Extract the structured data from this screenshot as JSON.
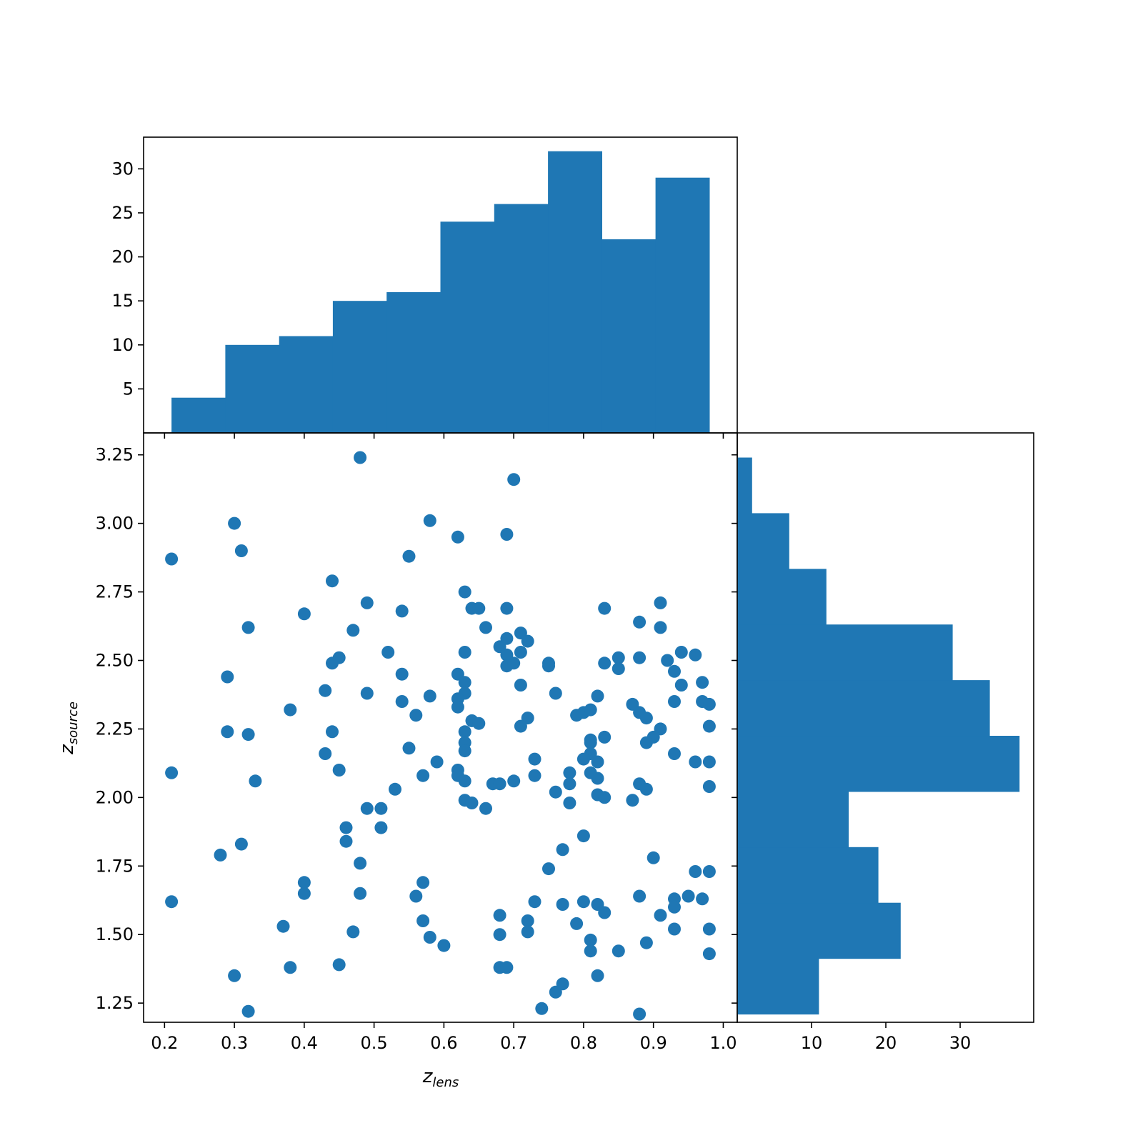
{
  "colors": {
    "series": "#1f77b4",
    "axis": "#000000",
    "background": "#ffffff"
  },
  "chart_data": [
    {
      "id": "scatter",
      "type": "scatter",
      "xlabel": "z",
      "xlabel_sub": "lens",
      "ylabel": "z",
      "ylabel_sub": "source",
      "xlim": [
        0.17,
        1.02
      ],
      "ylim": [
        1.18,
        3.33
      ],
      "xticks": [
        {
          "value": 0.2,
          "label": "0.2"
        },
        {
          "value": 0.3,
          "label": "0.3"
        },
        {
          "value": 0.4,
          "label": "0.4"
        },
        {
          "value": 0.5,
          "label": "0.5"
        },
        {
          "value": 0.6,
          "label": "0.6"
        },
        {
          "value": 0.7,
          "label": "0.7"
        },
        {
          "value": 0.8,
          "label": "0.8"
        },
        {
          "value": 0.9,
          "label": "0.9"
        },
        {
          "value": 1.0,
          "label": "1.0"
        }
      ],
      "yticks": [
        {
          "value": 1.25,
          "label": "1.25"
        },
        {
          "value": 1.5,
          "label": "1.50"
        },
        {
          "value": 1.75,
          "label": "1.75"
        },
        {
          "value": 2.0,
          "label": "2.00"
        },
        {
          "value": 2.25,
          "label": "2.25"
        },
        {
          "value": 2.5,
          "label": "2.50"
        },
        {
          "value": 2.75,
          "label": "2.75"
        },
        {
          "value": 3.0,
          "label": "3.00"
        },
        {
          "value": 3.25,
          "label": "3.25"
        }
      ],
      "grid": false,
      "points": [
        [
          0.48,
          3.24
        ],
        [
          0.7,
          3.16
        ],
        [
          0.3,
          3.0
        ],
        [
          0.58,
          3.01
        ],
        [
          0.62,
          2.95
        ],
        [
          0.69,
          2.96
        ],
        [
          0.31,
          2.9
        ],
        [
          0.21,
          2.87
        ],
        [
          0.55,
          2.88
        ],
        [
          0.44,
          2.79
        ],
        [
          0.63,
          2.75
        ],
        [
          0.4,
          2.67
        ],
        [
          0.49,
          2.71
        ],
        [
          0.54,
          2.68
        ],
        [
          0.64,
          2.69
        ],
        [
          0.65,
          2.69
        ],
        [
          0.69,
          2.69
        ],
        [
          0.83,
          2.69
        ],
        [
          0.91,
          2.71
        ],
        [
          0.32,
          2.62
        ],
        [
          0.47,
          2.61
        ],
        [
          0.66,
          2.62
        ],
        [
          0.88,
          2.64
        ],
        [
          0.91,
          2.62
        ],
        [
          0.71,
          2.6
        ],
        [
          0.69,
          2.58
        ],
        [
          0.72,
          2.57
        ],
        [
          0.68,
          2.55
        ],
        [
          0.52,
          2.53
        ],
        [
          0.63,
          2.53
        ],
        [
          0.71,
          2.53
        ],
        [
          0.69,
          2.52
        ],
        [
          0.45,
          2.51
        ],
        [
          0.44,
          2.49
        ],
        [
          0.69,
          2.48
        ],
        [
          0.7,
          2.49
        ],
        [
          0.75,
          2.49
        ],
        [
          0.75,
          2.48
        ],
        [
          0.83,
          2.49
        ],
        [
          0.85,
          2.51
        ],
        [
          0.85,
          2.47
        ],
        [
          0.88,
          2.51
        ],
        [
          0.92,
          2.5
        ],
        [
          0.94,
          2.53
        ],
        [
          0.96,
          2.52
        ],
        [
          0.29,
          2.44
        ],
        [
          0.54,
          2.45
        ],
        [
          0.62,
          2.45
        ],
        [
          0.63,
          2.42
        ],
        [
          0.71,
          2.41
        ],
        [
          0.93,
          2.46
        ],
        [
          0.94,
          2.41
        ],
        [
          0.97,
          2.42
        ],
        [
          0.43,
          2.39
        ],
        [
          0.49,
          2.38
        ],
        [
          0.58,
          2.37
        ],
        [
          0.63,
          2.38
        ],
        [
          0.76,
          2.38
        ],
        [
          0.82,
          2.37
        ],
        [
          0.54,
          2.35
        ],
        [
          0.62,
          2.36
        ],
        [
          0.62,
          2.33
        ],
        [
          0.87,
          2.34
        ],
        [
          0.93,
          2.35
        ],
        [
          0.97,
          2.35
        ],
        [
          0.98,
          2.34
        ],
        [
          0.38,
          2.32
        ],
        [
          0.56,
          2.3
        ],
        [
          0.79,
          2.3
        ],
        [
          0.8,
          2.31
        ],
        [
          0.81,
          2.32
        ],
        [
          0.88,
          2.31
        ],
        [
          0.89,
          2.29
        ],
        [
          0.72,
          2.29
        ],
        [
          0.64,
          2.28
        ],
        [
          0.65,
          2.27
        ],
        [
          0.71,
          2.26
        ],
        [
          0.29,
          2.24
        ],
        [
          0.32,
          2.23
        ],
        [
          0.44,
          2.24
        ],
        [
          0.63,
          2.24
        ],
        [
          0.91,
          2.25
        ],
        [
          0.98,
          2.26
        ],
        [
          0.83,
          2.22
        ],
        [
          0.9,
          2.22
        ],
        [
          0.89,
          2.2
        ],
        [
          0.81,
          2.21
        ],
        [
          0.81,
          2.2
        ],
        [
          0.63,
          2.2
        ],
        [
          0.55,
          2.18
        ],
        [
          0.63,
          2.17
        ],
        [
          0.43,
          2.16
        ],
        [
          0.93,
          2.16
        ],
        [
          0.81,
          2.16
        ],
        [
          0.59,
          2.13
        ],
        [
          0.73,
          2.14
        ],
        [
          0.8,
          2.14
        ],
        [
          0.82,
          2.13
        ],
        [
          0.96,
          2.13
        ],
        [
          0.98,
          2.13
        ],
        [
          0.45,
          2.1
        ],
        [
          0.62,
          2.1
        ],
        [
          0.21,
          2.09
        ],
        [
          0.57,
          2.08
        ],
        [
          0.62,
          2.08
        ],
        [
          0.73,
          2.08
        ],
        [
          0.78,
          2.09
        ],
        [
          0.81,
          2.09
        ],
        [
          0.33,
          2.06
        ],
        [
          0.63,
          2.06
        ],
        [
          0.67,
          2.05
        ],
        [
          0.68,
          2.05
        ],
        [
          0.7,
          2.06
        ],
        [
          0.78,
          2.05
        ],
        [
          0.82,
          2.07
        ],
        [
          0.88,
          2.05
        ],
        [
          0.98,
          2.04
        ],
        [
          0.53,
          2.03
        ],
        [
          0.76,
          2.02
        ],
        [
          0.89,
          2.03
        ],
        [
          0.82,
          2.01
        ],
        [
          0.83,
          2.0
        ],
        [
          0.87,
          1.99
        ],
        [
          0.63,
          1.99
        ],
        [
          0.64,
          1.98
        ],
        [
          0.78,
          1.98
        ],
        [
          0.49,
          1.96
        ],
        [
          0.51,
          1.96
        ],
        [
          0.66,
          1.96
        ],
        [
          0.46,
          1.89
        ],
        [
          0.51,
          1.89
        ],
        [
          0.8,
          1.86
        ],
        [
          0.46,
          1.84
        ],
        [
          0.31,
          1.83
        ],
        [
          0.77,
          1.81
        ],
        [
          0.28,
          1.79
        ],
        [
          0.9,
          1.78
        ],
        [
          0.48,
          1.76
        ],
        [
          0.75,
          1.74
        ],
        [
          0.96,
          1.73
        ],
        [
          0.98,
          1.73
        ],
        [
          0.4,
          1.69
        ],
        [
          0.57,
          1.69
        ],
        [
          0.4,
          1.65
        ],
        [
          0.48,
          1.65
        ],
        [
          0.56,
          1.64
        ],
        [
          0.88,
          1.64
        ],
        [
          0.95,
          1.64
        ],
        [
          0.93,
          1.63
        ],
        [
          0.97,
          1.63
        ],
        [
          0.21,
          1.62
        ],
        [
          0.73,
          1.62
        ],
        [
          0.8,
          1.62
        ],
        [
          0.77,
          1.61
        ],
        [
          0.82,
          1.61
        ],
        [
          0.93,
          1.6
        ],
        [
          0.83,
          1.58
        ],
        [
          0.68,
          1.57
        ],
        [
          0.91,
          1.57
        ],
        [
          0.57,
          1.55
        ],
        [
          0.72,
          1.55
        ],
        [
          0.79,
          1.54
        ],
        [
          0.37,
          1.53
        ],
        [
          0.93,
          1.52
        ],
        [
          0.98,
          1.52
        ],
        [
          0.47,
          1.51
        ],
        [
          0.72,
          1.51
        ],
        [
          0.68,
          1.5
        ],
        [
          0.58,
          1.49
        ],
        [
          0.81,
          1.48
        ],
        [
          0.89,
          1.47
        ],
        [
          0.6,
          1.46
        ],
        [
          0.81,
          1.44
        ],
        [
          0.85,
          1.44
        ],
        [
          0.98,
          1.43
        ],
        [
          0.45,
          1.39
        ],
        [
          0.38,
          1.38
        ],
        [
          0.68,
          1.38
        ],
        [
          0.69,
          1.38
        ],
        [
          0.3,
          1.35
        ],
        [
          0.82,
          1.35
        ],
        [
          0.77,
          1.32
        ],
        [
          0.76,
          1.29
        ],
        [
          0.74,
          1.23
        ],
        [
          0.32,
          1.22
        ],
        [
          0.88,
          1.21
        ]
      ]
    },
    {
      "id": "top-histogram",
      "type": "bar",
      "orientation": "vertical",
      "ylim": [
        0,
        33.6
      ],
      "yticks": [
        {
          "value": 5,
          "label": "5"
        },
        {
          "value": 10,
          "label": "10"
        },
        {
          "value": 15,
          "label": "15"
        },
        {
          "value": 20,
          "label": "20"
        },
        {
          "value": 25,
          "label": "25"
        },
        {
          "value": 30,
          "label": "30"
        }
      ],
      "bin_edges": [
        0.21,
        0.287,
        0.364,
        0.441,
        0.518,
        0.595,
        0.672,
        0.749,
        0.826,
        0.903,
        0.98
      ],
      "counts": [
        4,
        10,
        11,
        15,
        16,
        24,
        26,
        32,
        22,
        29
      ]
    },
    {
      "id": "right-histogram",
      "type": "bar",
      "orientation": "horizontal",
      "xlim": [
        0,
        39.9
      ],
      "xticks": [
        {
          "value": 10,
          "label": "10"
        },
        {
          "value": 20,
          "label": "20"
        },
        {
          "value": 30,
          "label": "30"
        }
      ],
      "bin_edges": [
        1.21,
        1.413,
        1.616,
        1.819,
        2.022,
        2.225,
        2.428,
        2.631,
        2.834,
        3.037,
        3.24
      ],
      "counts": [
        11,
        22,
        19,
        15,
        38,
        34,
        29,
        12,
        7,
        2
      ]
    }
  ]
}
